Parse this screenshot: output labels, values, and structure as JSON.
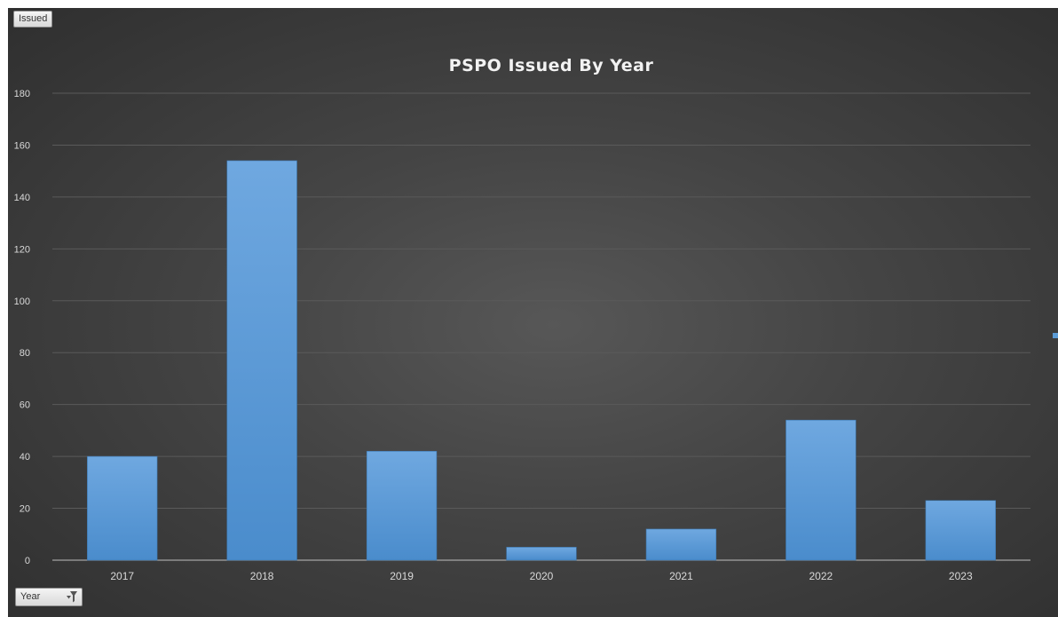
{
  "chart_data": {
    "type": "bar",
    "title": "PSPO Issued By Year",
    "categories": [
      "2017",
      "2018",
      "2019",
      "2020",
      "2021",
      "2022",
      "2023"
    ],
    "series": [
      {
        "values": [
          40,
          154,
          42,
          5,
          12,
          54,
          23
        ]
      }
    ],
    "ylim": [
      0,
      180
    ],
    "yticks": [
      0,
      20,
      40,
      60,
      80,
      100,
      120,
      140,
      160,
      180
    ],
    "grid": true,
    "legend": "right",
    "colors": {
      "bar": "#5b9bd5",
      "background": "#404040",
      "gridline": "#5a5a5a",
      "text": "#d9d9d9",
      "title": "#f2f2f2"
    }
  },
  "pivot_fields": {
    "values_button": "Issued",
    "axis_button": "Year",
    "axis_icon": "filter-icon"
  }
}
